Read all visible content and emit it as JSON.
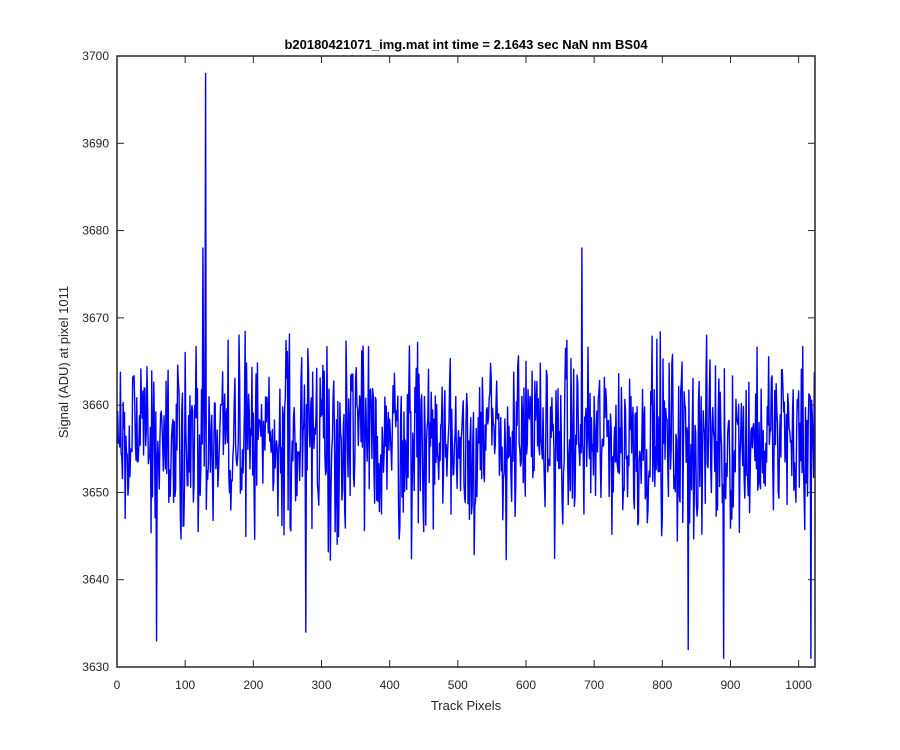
{
  "chart_data": {
    "type": "line",
    "title": "b20180421071_img.mat int time = 2.1643 sec  NaN nm BS04",
    "xlabel": "Track Pixels",
    "ylabel": "Signal (ADU) at pixel 1011",
    "xlim": [
      0,
      1024
    ],
    "ylim": [
      3630,
      3700
    ],
    "xticks": [
      0,
      100,
      200,
      300,
      400,
      500,
      600,
      700,
      800,
      900,
      1000
    ],
    "yticks": [
      3630,
      3640,
      3650,
      3660,
      3670,
      3680,
      3690,
      3700
    ],
    "grid": false,
    "legend": "none",
    "series": [
      {
        "color": "#0000ff",
        "n_points": 1024,
        "baseline_mean": 3656,
        "noise_range": [
          3631,
          3698
        ],
        "notable_points": [
          {
            "x": 58,
            "y": 3633
          },
          {
            "x": 126,
            "y": 3678
          },
          {
            "x": 130,
            "y": 3698
          },
          {
            "x": 277,
            "y": 3634
          },
          {
            "x": 682,
            "y": 3678
          },
          {
            "x": 838,
            "y": 3632
          },
          {
            "x": 890,
            "y": 3631
          },
          {
            "x": 1018,
            "y": 3631
          }
        ]
      }
    ]
  }
}
